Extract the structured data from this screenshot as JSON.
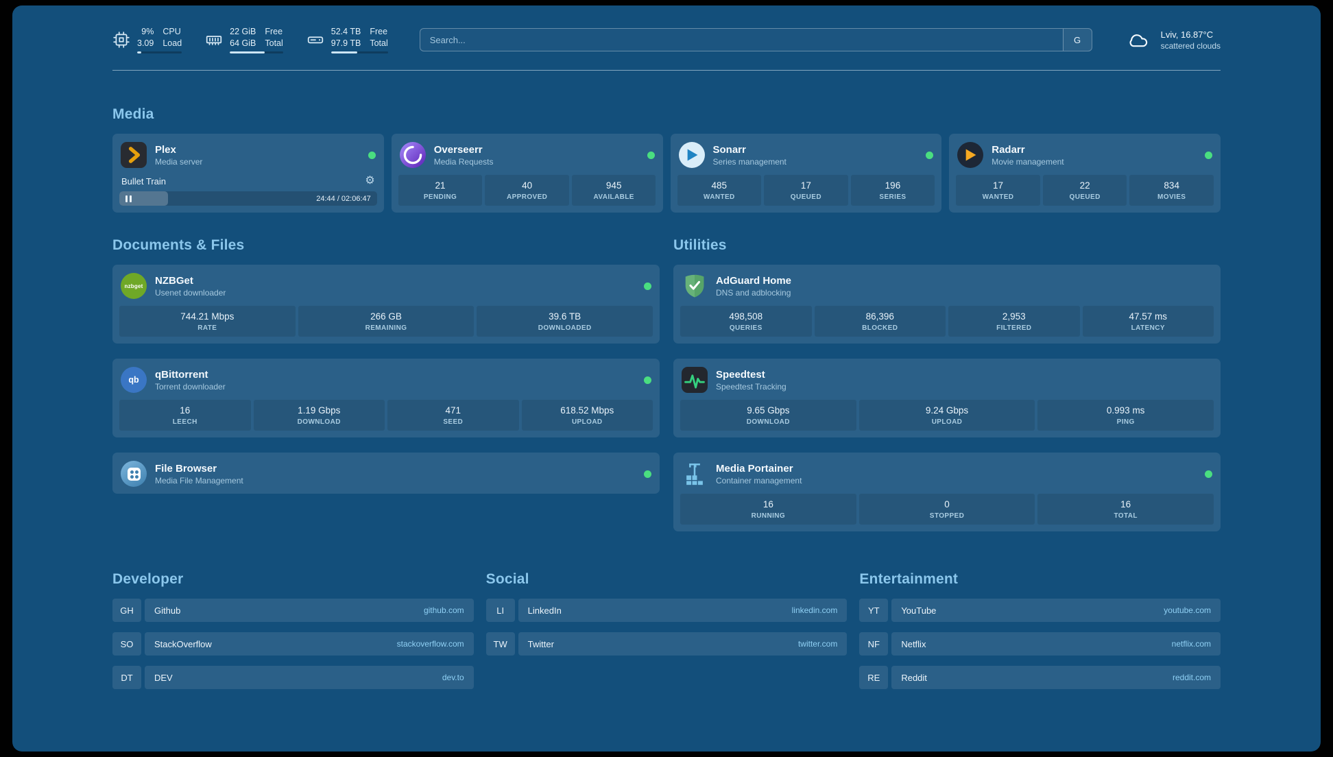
{
  "theme": {
    "background": "#134f7b",
    "card": "rgba(255,255,255,0.10)",
    "accent": "#8bc7ec",
    "status_online": "#4ade80"
  },
  "topbar": {
    "cpu": {
      "icon": "cpu-icon",
      "value1": "9%",
      "label1": "CPU",
      "value2": "3.09",
      "label2": "Load",
      "progress": 9
    },
    "memory": {
      "icon": "memory-icon",
      "value1": "22 GiB",
      "label1": "Free",
      "value2": "64 GiB",
      "label2": "Total",
      "progress": 66
    },
    "disk": {
      "icon": "disk-icon",
      "value1": "52.4 TB",
      "label1": "Free",
      "value2": "97.9 TB",
      "label2": "Total",
      "progress": 46
    },
    "search": {
      "placeholder": "Search...",
      "provider_button": "G"
    },
    "weather": {
      "icon": "cloud-icon",
      "location": "Lviv, 16.87°C",
      "condition": "scattered clouds"
    }
  },
  "sections": {
    "media": "Media",
    "documents": "Documents & Files",
    "utilities": "Utilities"
  },
  "services": {
    "plex": {
      "icon": "plex-icon",
      "name": "Plex",
      "subtitle": "Media server",
      "online": true,
      "player": {
        "title": "Bullet Train",
        "time": "24:44 / 02:06:47",
        "progress": 19
      }
    },
    "overseerr": {
      "icon": "overseerr-icon",
      "name": "Overseerr",
      "subtitle": "Media Requests",
      "online": true,
      "stats": [
        {
          "value": "21",
          "label": "PENDING"
        },
        {
          "value": "40",
          "label": "APPROVED"
        },
        {
          "value": "945",
          "label": "AVAILABLE"
        }
      ]
    },
    "sonarr": {
      "icon": "sonarr-icon",
      "name": "Sonarr",
      "subtitle": "Series management",
      "online": true,
      "stats": [
        {
          "value": "485",
          "label": "WANTED"
        },
        {
          "value": "17",
          "label": "QUEUED"
        },
        {
          "value": "196",
          "label": "SERIES"
        }
      ]
    },
    "radarr": {
      "icon": "radarr-icon",
      "name": "Radarr",
      "subtitle": "Movie management",
      "online": true,
      "stats": [
        {
          "value": "17",
          "label": "WANTED"
        },
        {
          "value": "22",
          "label": "QUEUED"
        },
        {
          "value": "834",
          "label": "MOVIES"
        }
      ]
    },
    "nzbget": {
      "icon": "nzbget-icon",
      "icon_text": "nzbget",
      "name": "NZBGet",
      "subtitle": "Usenet downloader",
      "online": true,
      "stats": [
        {
          "value": "744.21 Mbps",
          "label": "RATE"
        },
        {
          "value": "266 GB",
          "label": "REMAINING"
        },
        {
          "value": "39.6 TB",
          "label": "DOWNLOADED"
        }
      ]
    },
    "qbittorrent": {
      "icon": "qbittorrent-icon",
      "icon_text": "qb",
      "name": "qBittorrent",
      "subtitle": "Torrent downloader",
      "online": true,
      "stats": [
        {
          "value": "16",
          "label": "LEECH"
        },
        {
          "value": "1.19 Gbps",
          "label": "DOWNLOAD"
        },
        {
          "value": "471",
          "label": "SEED"
        },
        {
          "value": "618.52 Mbps",
          "label": "UPLOAD"
        }
      ]
    },
    "filebrowser": {
      "icon": "filebrowser-icon",
      "name": "File Browser",
      "subtitle": "Media File Management",
      "online": true
    },
    "adguard": {
      "icon": "adguard-shield-icon",
      "name": "AdGuard Home",
      "subtitle": "DNS and adblocking",
      "stats": [
        {
          "value": "498,508",
          "label": "QUERIES"
        },
        {
          "value": "86,396",
          "label": "BLOCKED"
        },
        {
          "value": "2,953",
          "label": "FILTERED"
        },
        {
          "value": "47.57 ms",
          "label": "LATENCY"
        }
      ]
    },
    "speedtest": {
      "icon": "speedtest-icon",
      "name": "Speedtest",
      "subtitle": "Speedtest Tracking",
      "stats": [
        {
          "value": "9.65 Gbps",
          "label": "DOWNLOAD"
        },
        {
          "value": "9.24 Gbps",
          "label": "UPLOAD"
        },
        {
          "value": "0.993 ms",
          "label": "PING"
        }
      ]
    },
    "portainer": {
      "icon": "portainer-icon",
      "name": "Media Portainer",
      "subtitle": "Container management",
      "online": true,
      "stats": [
        {
          "value": "16",
          "label": "RUNNING"
        },
        {
          "value": "0",
          "label": "STOPPED"
        },
        {
          "value": "16",
          "label": "TOTAL"
        }
      ]
    }
  },
  "bookmarks": {
    "developer": {
      "title": "Developer",
      "items": [
        {
          "abbr": "GH",
          "name": "Github",
          "domain": "github.com"
        },
        {
          "abbr": "SO",
          "name": "StackOverflow",
          "domain": "stackoverflow.com"
        },
        {
          "abbr": "DT",
          "name": "DEV",
          "domain": "dev.to"
        }
      ]
    },
    "social": {
      "title": "Social",
      "items": [
        {
          "abbr": "LI",
          "name": "LinkedIn",
          "domain": "linkedin.com"
        },
        {
          "abbr": "TW",
          "name": "Twitter",
          "domain": "twitter.com"
        }
      ]
    },
    "entertainment": {
      "title": "Entertainment",
      "items": [
        {
          "abbr": "YT",
          "name": "YouTube",
          "domain": "youtube.com"
        },
        {
          "abbr": "NF",
          "name": "Netflix",
          "domain": "netflix.com"
        },
        {
          "abbr": "RE",
          "name": "Reddit",
          "domain": "reddit.com"
        }
      ]
    }
  }
}
